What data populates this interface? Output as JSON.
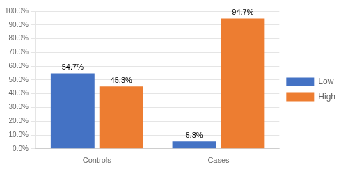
{
  "chart_data": {
    "type": "bar",
    "categories": [
      "Controls",
      "Cases"
    ],
    "series": [
      {
        "name": "Low",
        "color": "#4472C4",
        "values": [
          54.7,
          5.3
        ],
        "value_labels": [
          "54.7%",
          "5.3%"
        ]
      },
      {
        "name": "High",
        "color": "#ED7D31",
        "values": [
          45.3,
          94.7
        ],
        "value_labels": [
          "45.3%",
          "94.7%"
        ]
      }
    ],
    "ylim": [
      0,
      100
    ],
    "yticks": [
      {
        "value": 0,
        "label": "0.0%"
      },
      {
        "value": 10,
        "label": "10.0%"
      },
      {
        "value": 20,
        "label": "20.0%"
      },
      {
        "value": 30,
        "label": "30.0%"
      },
      {
        "value": 40,
        "label": "40.0%"
      },
      {
        "value": 50,
        "label": "50.0%"
      },
      {
        "value": 60,
        "label": "60.0%"
      },
      {
        "value": 70,
        "label": "70.0%"
      },
      {
        "value": 80,
        "label": "80.0%"
      },
      {
        "value": 90,
        "label": "90.0%"
      },
      {
        "value": 100,
        "label": "100.0%"
      }
    ],
    "grid": true,
    "legend": "right",
    "data_labels": true
  }
}
